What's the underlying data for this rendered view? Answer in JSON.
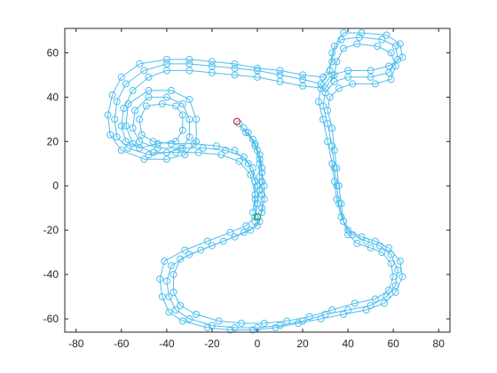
{
  "chart_data": {
    "type": "line",
    "marker": "circle",
    "xlim": [
      -85,
      85
    ],
    "ylim": [
      -66,
      71
    ],
    "xticks": [
      -80,
      -60,
      -40,
      -20,
      0,
      20,
      40,
      60,
      80
    ],
    "yticks": [
      -60,
      -40,
      -20,
      0,
      20,
      40,
      60
    ],
    "xtick_labels": [
      "-80",
      "-60",
      "-40",
      "-20",
      "0",
      "20",
      "40",
      "60",
      "80"
    ],
    "ytick_labels": [
      "-60",
      "-40",
      "-20",
      "0",
      "20",
      "40",
      "60"
    ],
    "grid": false,
    "series": [
      {
        "color": "#4dbeee",
        "points": [
          [
            -8,
            28
          ],
          [
            -5,
            24
          ],
          [
            -1,
            19
          ],
          [
            1,
            14
          ],
          [
            2,
            8
          ],
          [
            2,
            2
          ],
          [
            2,
            -4
          ],
          [
            2,
            -10
          ],
          [
            1,
            -16
          ],
          [
            -3,
            -20
          ],
          [
            -10,
            -23
          ],
          [
            -20,
            -27
          ],
          [
            -30,
            -31
          ],
          [
            -38,
            -36
          ],
          [
            -40,
            -43
          ],
          [
            -39,
            -50
          ],
          [
            -36,
            -56
          ],
          [
            -30,
            -60
          ],
          [
            -20,
            -63
          ],
          [
            -10,
            -64
          ],
          [
            0,
            -64
          ],
          [
            10,
            -63
          ],
          [
            20,
            -61
          ],
          [
            30,
            -58
          ],
          [
            40,
            -56
          ],
          [
            50,
            -54
          ],
          [
            57,
            -50
          ],
          [
            61,
            -45
          ],
          [
            62,
            -38
          ],
          [
            59,
            -31
          ],
          [
            54,
            -27
          ],
          [
            48,
            -25
          ],
          [
            42,
            -22
          ],
          [
            38,
            -16
          ],
          [
            36,
            -8
          ],
          [
            35,
            0
          ],
          [
            34,
            8
          ],
          [
            33,
            18
          ],
          [
            31,
            28
          ],
          [
            29,
            36
          ],
          [
            30,
            42
          ],
          [
            34,
            47
          ],
          [
            40,
            49
          ],
          [
            50,
            49
          ],
          [
            58,
            51
          ],
          [
            62,
            57
          ],
          [
            61,
            63
          ],
          [
            55,
            66
          ],
          [
            45,
            67
          ],
          [
            37,
            66
          ],
          [
            33,
            60
          ],
          [
            32,
            52
          ],
          [
            28,
            46
          ],
          [
            20,
            48
          ],
          [
            10,
            50
          ],
          [
            0,
            52
          ],
          [
            -10,
            53
          ],
          [
            -20,
            54
          ],
          [
            -30,
            55
          ],
          [
            -40,
            55
          ],
          [
            -50,
            52
          ],
          [
            -58,
            46
          ],
          [
            -62,
            38
          ],
          [
            -63,
            30
          ],
          [
            -62,
            22
          ],
          [
            -57,
            17
          ],
          [
            -48,
            14
          ],
          [
            -40,
            15
          ],
          [
            -33,
            17
          ],
          [
            -30,
            22
          ],
          [
            -30,
            30
          ],
          [
            -33,
            37
          ],
          [
            -40,
            40
          ],
          [
            -48,
            40
          ],
          [
            -54,
            34
          ],
          [
            -55,
            26
          ],
          [
            -52,
            20
          ],
          [
            -44,
            17
          ],
          [
            -34,
            17
          ],
          [
            -24,
            17
          ],
          [
            -14,
            16
          ],
          [
            -6,
            13
          ],
          [
            -2,
            8
          ],
          [
            0,
            0
          ],
          [
            0,
            -8
          ],
          [
            -1,
            -16
          ]
        ]
      },
      {
        "color": "#4dbeee",
        "points": [
          [
            -6,
            26
          ],
          [
            -2,
            21
          ],
          [
            0,
            16
          ],
          [
            1,
            10
          ],
          [
            1,
            4
          ],
          [
            1,
            -2
          ],
          [
            0,
            -8
          ],
          [
            -1,
            -14
          ],
          [
            -5,
            -18
          ],
          [
            -12,
            -21
          ],
          [
            -22,
            -25
          ],
          [
            -32,
            -29
          ],
          [
            -41,
            -34
          ],
          [
            -43,
            -42
          ],
          [
            -42,
            -50
          ],
          [
            -39,
            -57
          ],
          [
            -33,
            -61
          ],
          [
            -22,
            -64
          ],
          [
            -12,
            -65
          ],
          [
            -2,
            -65
          ],
          [
            8,
            -64
          ],
          [
            18,
            -62
          ],
          [
            28,
            -60
          ],
          [
            38,
            -58
          ],
          [
            48,
            -56
          ],
          [
            56,
            -53
          ],
          [
            61,
            -48
          ],
          [
            64,
            -41
          ],
          [
            63,
            -34
          ],
          [
            58,
            -28
          ],
          [
            52,
            -25
          ],
          [
            46,
            -23
          ],
          [
            40,
            -20
          ],
          [
            37,
            -14
          ],
          [
            35,
            -6
          ],
          [
            34,
            2
          ],
          [
            33,
            10
          ],
          [
            31,
            20
          ],
          [
            29,
            30
          ],
          [
            27,
            38
          ],
          [
            28,
            44
          ],
          [
            33,
            50
          ],
          [
            40,
            52
          ],
          [
            50,
            52
          ],
          [
            58,
            54
          ],
          [
            64,
            58
          ],
          [
            63,
            64
          ],
          [
            57,
            68
          ],
          [
            46,
            69
          ],
          [
            38,
            69
          ],
          [
            34,
            63
          ],
          [
            33,
            56
          ],
          [
            29,
            49
          ],
          [
            20,
            50
          ],
          [
            10,
            52
          ],
          [
            0,
            53
          ],
          [
            -10,
            55
          ],
          [
            -20,
            56
          ],
          [
            -30,
            57
          ],
          [
            -40,
            57
          ],
          [
            -52,
            55
          ],
          [
            -60,
            49
          ],
          [
            -64,
            41
          ],
          [
            -66,
            32
          ],
          [
            -65,
            23
          ],
          [
            -60,
            16
          ],
          [
            -50,
            12
          ],
          [
            -40,
            12
          ],
          [
            -32,
            14
          ],
          [
            -27,
            20
          ],
          [
            -27,
            30
          ],
          [
            -30,
            39
          ],
          [
            -38,
            43
          ],
          [
            -48,
            43
          ],
          [
            -57,
            37
          ],
          [
            -58,
            27
          ],
          [
            -55,
            19
          ],
          [
            -46,
            15
          ],
          [
            -36,
            15
          ],
          [
            -26,
            15
          ],
          [
            -16,
            14
          ],
          [
            -8,
            11
          ],
          [
            -3,
            5
          ],
          [
            -1,
            -4
          ],
          [
            -2,
            -12
          ]
        ]
      },
      {
        "color": "#4dbeee",
        "points": [
          [
            -4,
            24
          ],
          [
            -1,
            18
          ],
          [
            1,
            12
          ],
          [
            2,
            6
          ],
          [
            3,
            0
          ],
          [
            3,
            -6
          ],
          [
            2,
            -12
          ],
          [
            0,
            -18
          ],
          [
            -6,
            -21
          ],
          [
            -15,
            -25
          ],
          [
            -25,
            -29
          ],
          [
            -34,
            -33
          ],
          [
            -37,
            -40
          ],
          [
            -37,
            -48
          ],
          [
            -34,
            -54
          ],
          [
            -27,
            -58
          ],
          [
            -17,
            -61
          ],
          [
            -7,
            -62
          ],
          [
            3,
            -62
          ],
          [
            13,
            -61
          ],
          [
            23,
            -59
          ],
          [
            33,
            -56
          ],
          [
            43,
            -53
          ],
          [
            52,
            -51
          ],
          [
            58,
            -47
          ],
          [
            60,
            -41
          ],
          [
            59,
            -35
          ],
          [
            55,
            -30
          ],
          [
            50,
            -28
          ],
          [
            44,
            -26
          ],
          [
            40,
            -22
          ],
          [
            38,
            -16
          ],
          [
            37,
            -8
          ],
          [
            36,
            0
          ],
          [
            35,
            8
          ],
          [
            34,
            16
          ],
          [
            33,
            26
          ],
          [
            31,
            34
          ],
          [
            32,
            40
          ],
          [
            36,
            44
          ],
          [
            42,
            46
          ],
          [
            52,
            46
          ],
          [
            59,
            48
          ],
          [
            61,
            54
          ],
          [
            59,
            60
          ],
          [
            53,
            63
          ],
          [
            44,
            64
          ],
          [
            38,
            62
          ],
          [
            35,
            56
          ],
          [
            34,
            50
          ],
          [
            30,
            44
          ],
          [
            20,
            45
          ],
          [
            10,
            47
          ],
          [
            0,
            49
          ],
          [
            -10,
            50
          ],
          [
            -20,
            51
          ],
          [
            -30,
            52
          ],
          [
            -40,
            52
          ],
          [
            -48,
            49
          ],
          [
            -55,
            43
          ],
          [
            -59,
            35
          ],
          [
            -60,
            27
          ],
          [
            -58,
            20
          ],
          [
            -52,
            17
          ],
          [
            -44,
            19
          ],
          [
            -36,
            20
          ],
          [
            -33,
            25
          ],
          [
            -33,
            32
          ],
          [
            -36,
            36
          ],
          [
            -42,
            37
          ],
          [
            -49,
            36
          ],
          [
            -52,
            30
          ],
          [
            -51,
            23
          ],
          [
            -46,
            20
          ],
          [
            -38,
            19
          ],
          [
            -28,
            19
          ],
          [
            -18,
            18
          ],
          [
            -10,
            16
          ],
          [
            -4,
            10
          ],
          [
            -1,
            2
          ],
          [
            -1,
            -6
          ],
          [
            -1,
            -14
          ]
        ]
      }
    ],
    "markers": [
      {
        "point": [
          -9,
          29
        ],
        "color": "#d62728"
      },
      {
        "point": [
          0,
          -14
        ],
        "color": "#2ca02c"
      }
    ]
  }
}
